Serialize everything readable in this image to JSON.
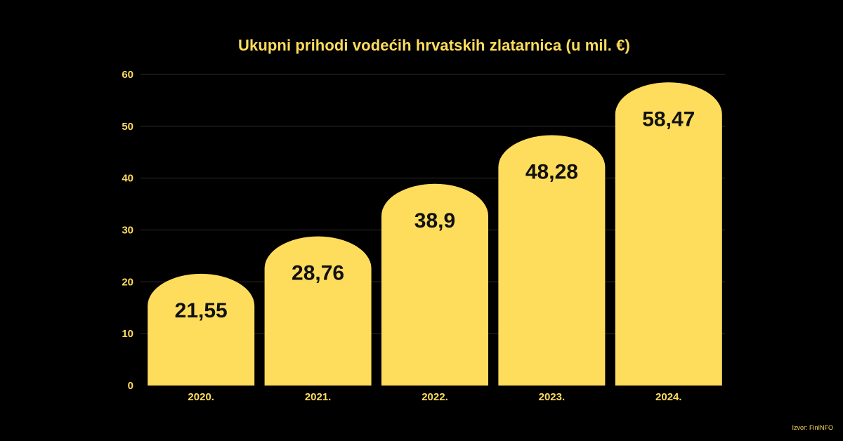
{
  "chart_data": {
    "type": "bar",
    "title": "Ukupni prihodi vodećih hrvatskih zlatarnica (u mil. €)",
    "xlabel": "",
    "ylabel": "",
    "categories": [
      "2020.",
      "2021.",
      "2022.",
      "2023.",
      "2024."
    ],
    "values": [
      21.55,
      28.76,
      38.9,
      48.28,
      58.47
    ],
    "value_labels": [
      "21,55",
      "28,76",
      "38,9",
      "48,28",
      "58,47"
    ],
    "ylim": [
      0,
      60
    ],
    "yticks": [
      0,
      10,
      20,
      30,
      40,
      50,
      60
    ],
    "grid": true,
    "legend": "none",
    "bar_color": "#FFDD5C",
    "text_color": "#FFDD5C",
    "label_color": "#111111",
    "background": "#000000"
  },
  "source": "Izvor: FinINFO"
}
